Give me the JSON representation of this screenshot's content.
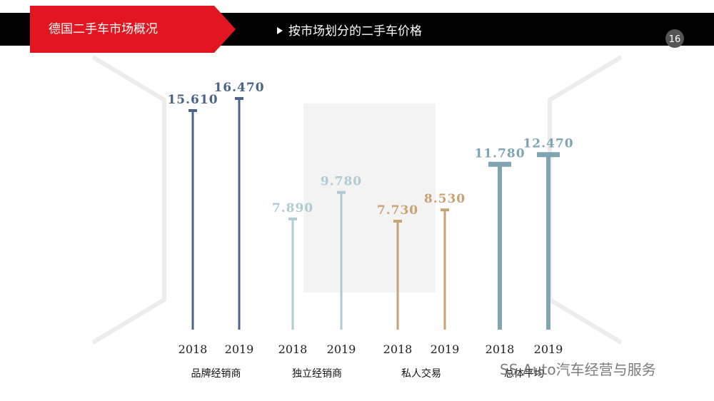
{
  "header": {
    "section": "德国二手车市场概况",
    "subtitle": "按市场划分的二手车价格",
    "page": "16"
  },
  "chart_data": {
    "type": "bar",
    "categories": [
      "品牌经销商",
      "独立经销商",
      "私人交易",
      "总体平均"
    ],
    "category_colors": [
      "#4b6486",
      "#aecbd2",
      "#c9a271",
      "#7fa5b2"
    ],
    "series": [
      {
        "name": "2018",
        "values": [
          15.61,
          7.89,
          7.73,
          11.78
        ],
        "value_labels": [
          "15.610",
          "7.890",
          "7.730",
          "11.780"
        ]
      },
      {
        "name": "2019",
        "values": [
          16.47,
          9.78,
          8.53,
          12.47
        ],
        "value_labels": [
          "16.470",
          "9.780",
          "8.530",
          "12.470"
        ]
      }
    ]
  },
  "watermark": "SS-Auto汽车经营与服务"
}
